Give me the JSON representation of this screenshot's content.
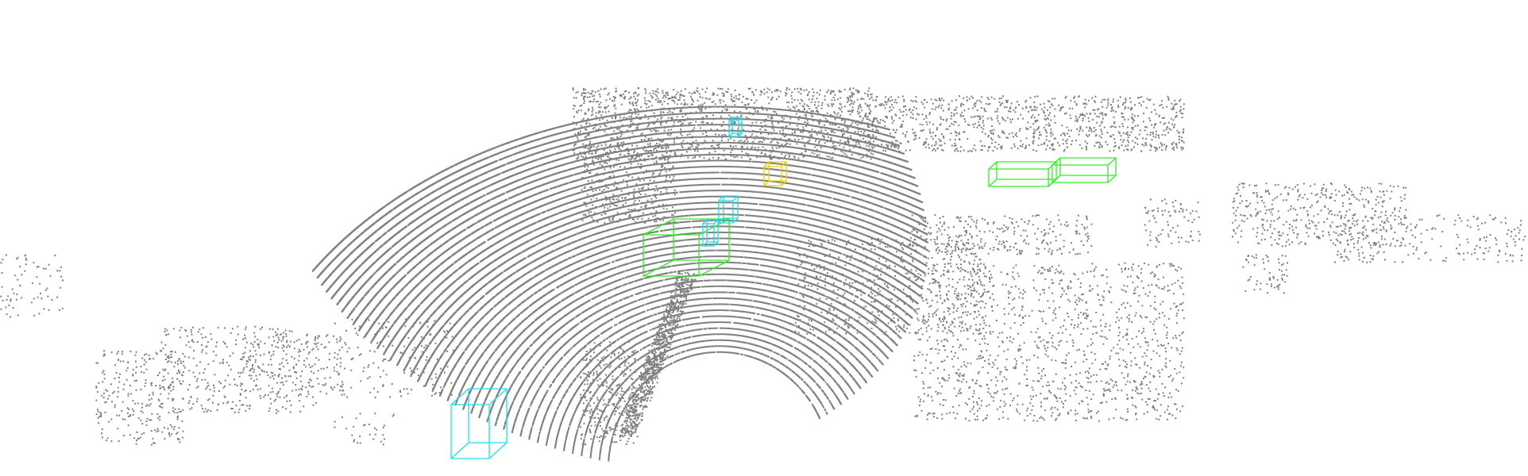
{
  "colors": {
    "background": "#ffffff",
    "points": "#808080",
    "box_car": "#33ee22",
    "box_pedestrian": "#22dde8",
    "box_cyclist": "#e8d400"
  },
  "detections": [
    {
      "class": "car"
    },
    {
      "class": "car"
    },
    {
      "class": "car"
    },
    {
      "class": "pedestrian"
    },
    {
      "class": "pedestrian"
    },
    {
      "class": "pedestrian"
    },
    {
      "class": "pedestrian"
    },
    {
      "class": "cyclist"
    }
  ]
}
